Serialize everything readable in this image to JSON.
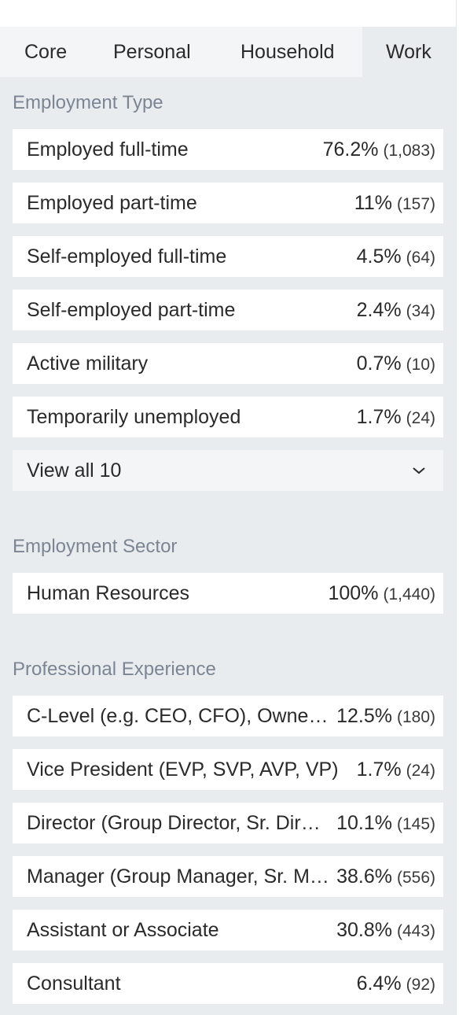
{
  "tabs": [
    {
      "label": "Core"
    },
    {
      "label": "Personal"
    },
    {
      "label": "Household"
    },
    {
      "label": "Work"
    }
  ],
  "active_tab": "Work",
  "employment_type": {
    "title": "Employment Type",
    "rows": [
      {
        "label": "Employed full-time",
        "pct": "76.2%",
        "count": "(1,083)"
      },
      {
        "label": "Employed part-time",
        "pct": "11%",
        "count": "(157)"
      },
      {
        "label": "Self-employed full-time",
        "pct": "4.5%",
        "count": "(64)"
      },
      {
        "label": "Self-employed part-time",
        "pct": "2.4%",
        "count": "(34)"
      },
      {
        "label": "Active military",
        "pct": "0.7%",
        "count": "(10)"
      },
      {
        "label": "Temporarily unemployed",
        "pct": "1.7%",
        "count": "(24)"
      }
    ],
    "view_all_label": "View all 10"
  },
  "employment_sector": {
    "title": "Employment Sector",
    "rows": [
      {
        "label": "Human Resources",
        "pct": "100%",
        "count": "(1,440)"
      }
    ]
  },
  "professional_experience": {
    "title": "Professional Experience",
    "rows": [
      {
        "label": "C-Level (e.g. CEO, CFO), Owner, Partner, President",
        "pct": "12.5%",
        "count": "(180)"
      },
      {
        "label": "Vice President (EVP, SVP, AVP, VP)",
        "pct": "1.7%",
        "count": "(24)"
      },
      {
        "label": "Director (Group Director, Sr. Director, Director)",
        "pct": "10.1%",
        "count": "(145)"
      },
      {
        "label": "Manager (Group Manager, Sr. Manager, Manager, Program Manager)",
        "pct": "38.6%",
        "count": "(556)"
      },
      {
        "label": "Assistant or Associate",
        "pct": "30.8%",
        "count": "(443)"
      },
      {
        "label": "Consultant",
        "pct": "6.4%",
        "count": "(92)"
      }
    ]
  },
  "colors": {
    "panel_bg": "#e9ecef",
    "tab_bar_bg": "#f4f5f6",
    "section_title": "#7b8593",
    "text": "#2a2a2a"
  }
}
